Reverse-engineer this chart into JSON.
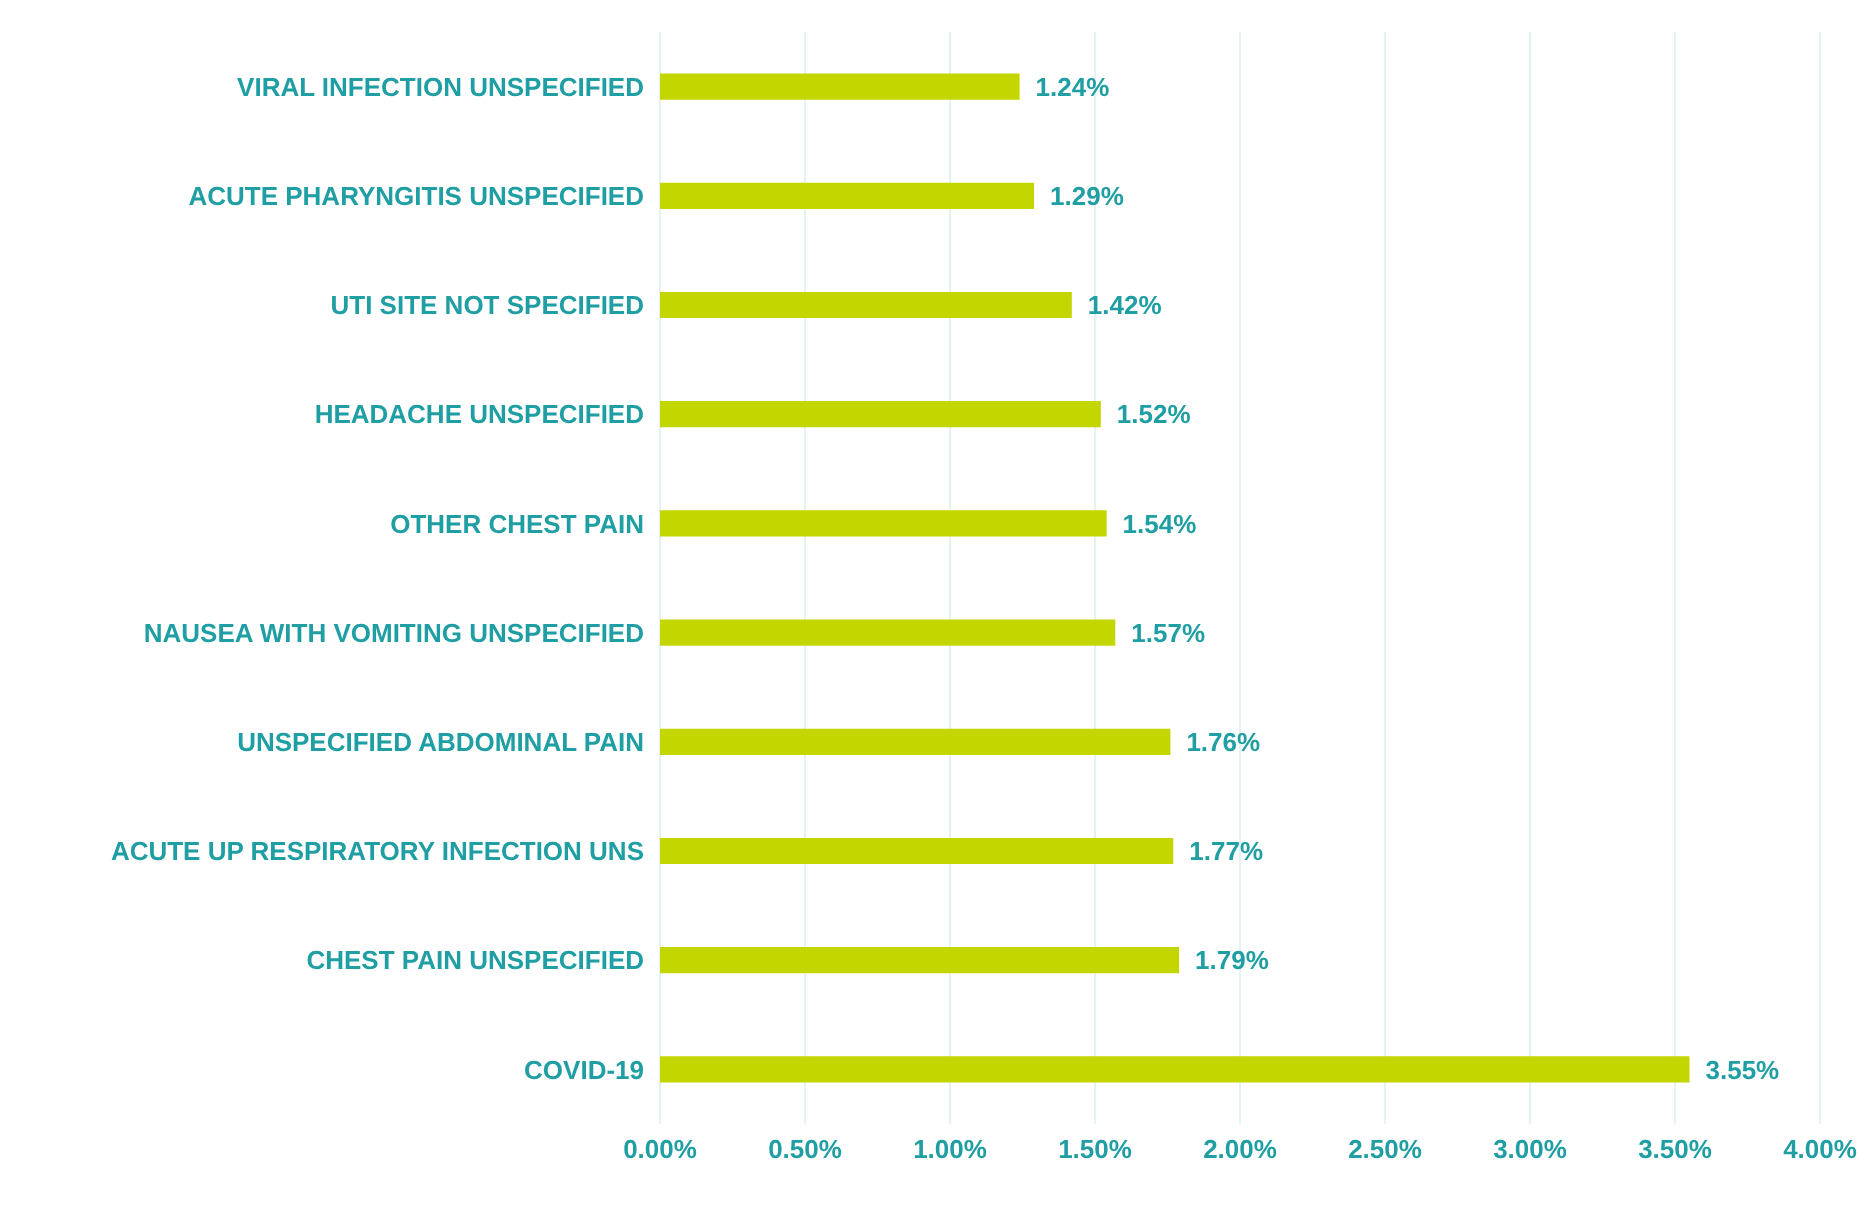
{
  "chart_data": {
    "type": "bar",
    "orientation": "horizontal",
    "categories": [
      "VIRAL INFECTION UNSPECIFIED",
      "ACUTE PHARYNGITIS UNSPECIFIED",
      "UTI SITE NOT SPECIFIED",
      "HEADACHE UNSPECIFIED",
      "OTHER CHEST PAIN",
      "NAUSEA WITH VOMITING UNSPECIFIED",
      "UNSPECIFIED ABDOMINAL PAIN",
      "ACUTE UP RESPIRATORY INFECTION UNS",
      "CHEST PAIN UNSPECIFIED",
      "COVID-19"
    ],
    "values": [
      1.24,
      1.29,
      1.42,
      1.52,
      1.54,
      1.57,
      1.76,
      1.77,
      1.79,
      3.55
    ],
    "value_labels": [
      "1.24%",
      "1.29%",
      "1.42%",
      "1.52%",
      "1.54%",
      "1.57%",
      "1.76%",
      "1.77%",
      "1.79%",
      "3.55%"
    ],
    "color": "#c3d600",
    "xlim": [
      0,
      4
    ],
    "xticks": [
      {
        "value": 0,
        "label": "0.00%"
      },
      {
        "value": 0.5,
        "label": "0.50%"
      },
      {
        "value": 1,
        "label": "1.00%"
      },
      {
        "value": 1.5,
        "label": "1.50%"
      },
      {
        "value": 2,
        "label": "2.00%"
      },
      {
        "value": 2.5,
        "label": "2.50%"
      },
      {
        "value": 3,
        "label": "3.00%"
      },
      {
        "value": 3.5,
        "label": "3.50%"
      },
      {
        "value": 4,
        "label": "4.00%"
      }
    ],
    "grid": "x"
  }
}
